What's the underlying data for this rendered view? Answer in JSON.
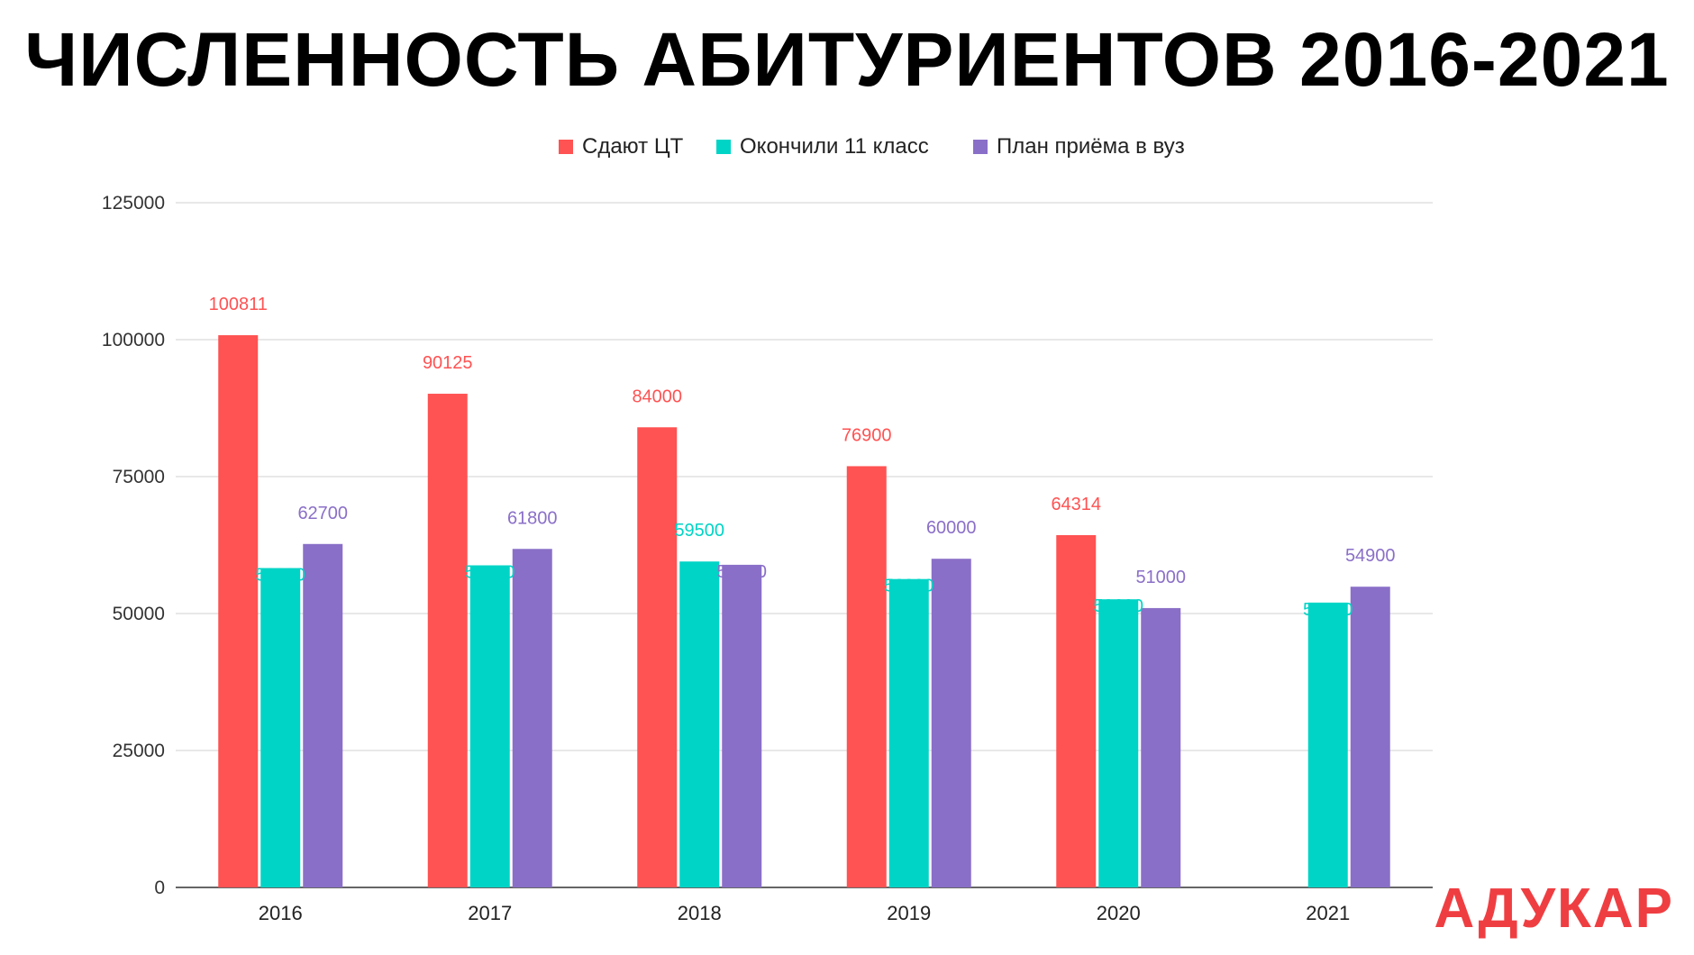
{
  "title": "ЧИСЛЕННОСТЬ АБИТУРИЕНТОВ 2016-2021",
  "logo": {
    "text": "АДУКАР",
    "color": "#ef3e42"
  },
  "chart_data": {
    "type": "bar",
    "categories": [
      "2016",
      "2017",
      "2018",
      "2019",
      "2020",
      "2021"
    ],
    "series": [
      {
        "name": "Сдают ЦТ",
        "color": "#ff5252",
        "values": [
          100811,
          90125,
          84000,
          76900,
          64314,
          null
        ],
        "labels": [
          "100811",
          "90125",
          "84000",
          "76900",
          "64314",
          ""
        ]
      },
      {
        "name": "Окончили 11 класс",
        "color": "#00d4c6",
        "values": [
          58300,
          58800,
          59500,
          56300,
          52600,
          52000
        ],
        "labels": [
          "58300",
          "58800",
          "59500",
          "56300",
          "52600",
          "52000"
        ]
      },
      {
        "name": "План приёма в вуз",
        "color": "#8a6fc8",
        "values": [
          62700,
          61800,
          58900,
          60000,
          51000,
          54900
        ],
        "labels": [
          "62700",
          "61800",
          "58900",
          "60000",
          "51000",
          "54900"
        ]
      }
    ],
    "ylim": [
      0,
      125000
    ],
    "yticks": [
      "0",
      "25000",
      "50000",
      "75000",
      "100000",
      "125000"
    ],
    "grid": true,
    "legend_position": "top-center",
    "title": "ЧИСЛЕННОСТЬ АБИТУРИЕНТОВ 2016-2021",
    "xlabel": "",
    "ylabel": ""
  }
}
